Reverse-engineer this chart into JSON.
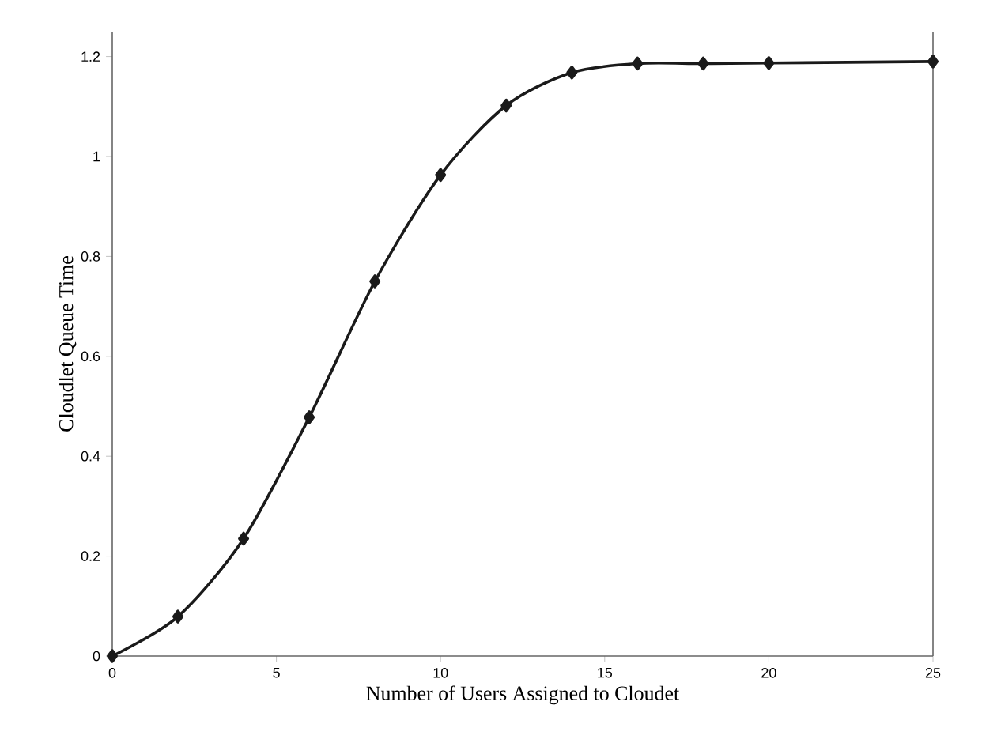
{
  "chart_data": {
    "type": "line",
    "xlabel": "Number of Users Assigned to Cloudet",
    "ylabel": "Cloudlet Queue Time",
    "x": [
      0,
      2,
      4,
      6,
      8,
      10,
      12,
      14,
      16,
      18,
      20,
      25
    ],
    "series": [
      {
        "color": "#1a1a1a",
        "values": [
          0,
          0.079,
          0.235,
          0.478,
          0.75,
          0.963,
          1.102,
          1.168,
          1.186,
          1.186,
          1.187,
          1.19
        ]
      }
    ],
    "xlim": [
      0,
      25
    ],
    "xticks": [
      0,
      5,
      10,
      15,
      20,
      25
    ],
    "ylim": [
      0,
      1.25
    ],
    "yticks": [
      0,
      0.2,
      0.4,
      0.6,
      0.8,
      1,
      1.2
    ],
    "marker": "diamond",
    "line_style": "solid"
  }
}
